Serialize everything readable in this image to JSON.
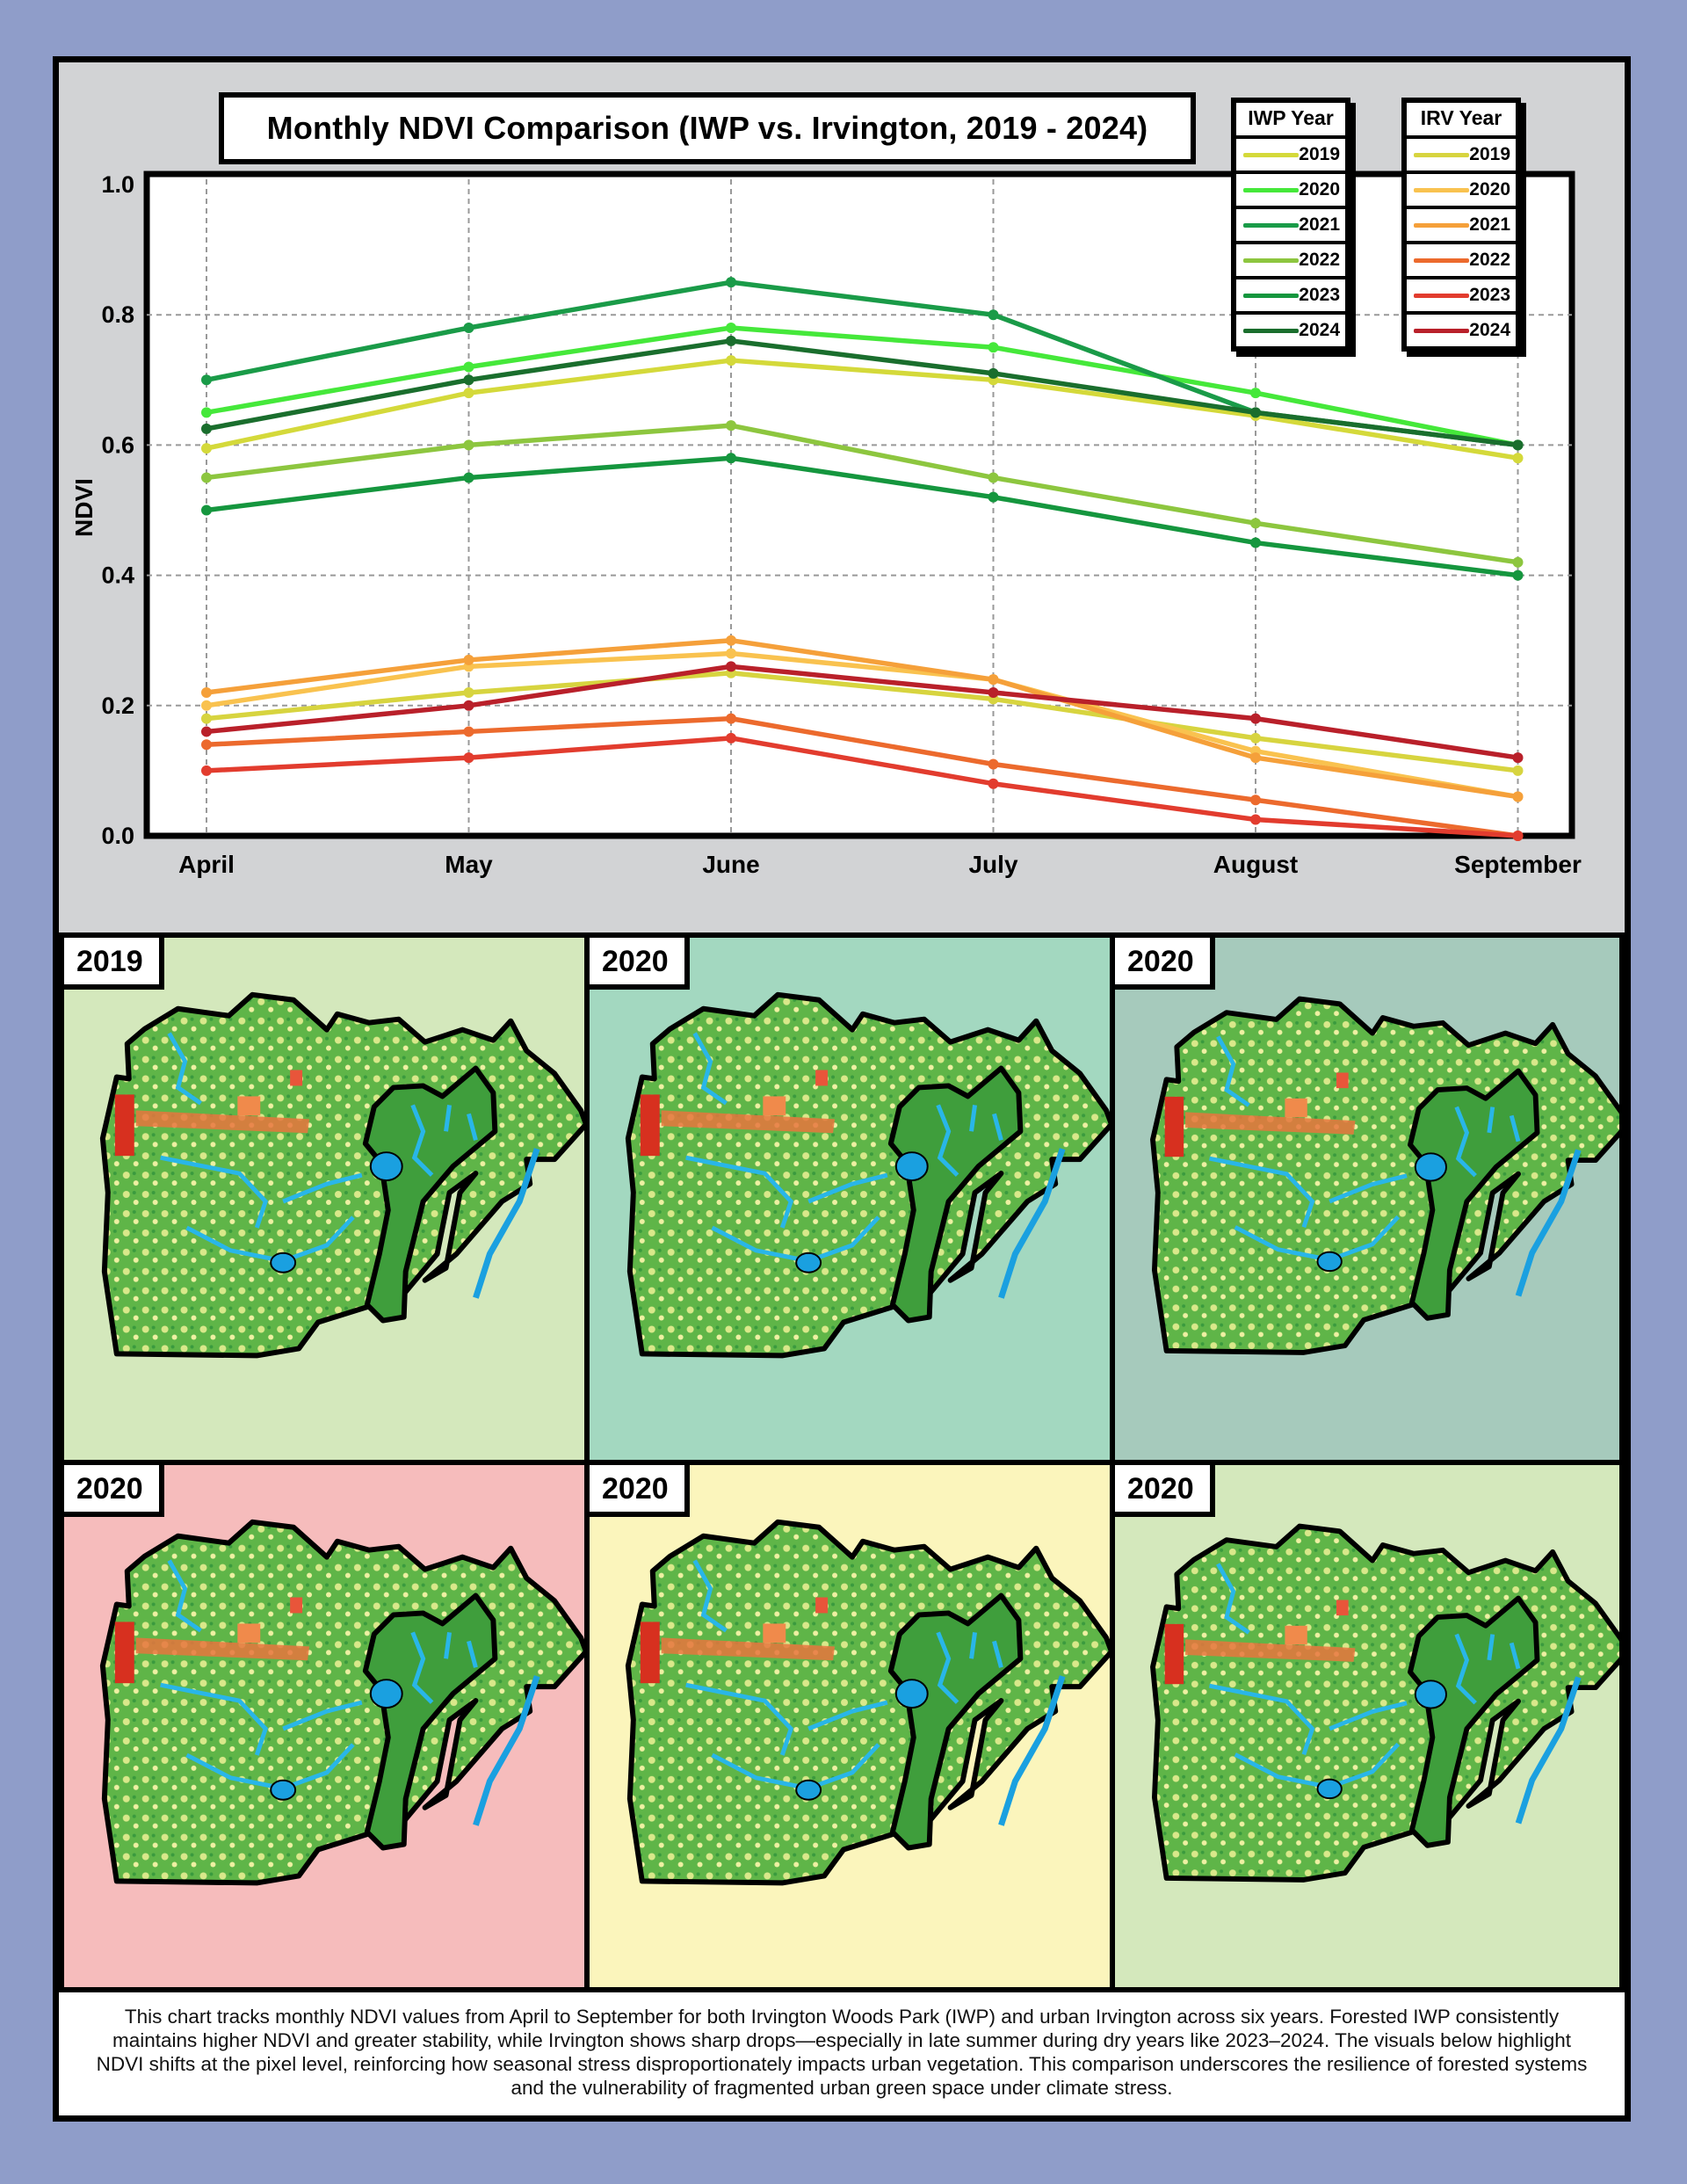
{
  "title": "Monthly NDVI Comparison (IWP vs. Irvington, 2019 - 2024)",
  "chart_data": {
    "type": "line",
    "ylabel": "NDVI",
    "xlabel": "",
    "categories": [
      "April",
      "May",
      "June",
      "July",
      "August",
      "September"
    ],
    "ylim": [
      0.0,
      1.0
    ],
    "yticks": [
      "0.0",
      "0.2",
      "0.4",
      "0.6",
      "0.8",
      "1.0"
    ],
    "grid": true,
    "legend_groups": [
      {
        "title": "IWP Year",
        "series": [
          {
            "name": "2019",
            "color": "#d4d93a",
            "values": [
              0.595,
              0.68,
              0.73,
              0.7,
              0.645,
              0.58
            ]
          },
          {
            "name": "2020",
            "color": "#45e83a",
            "values": [
              0.65,
              0.72,
              0.78,
              0.75,
              0.68,
              0.6
            ]
          },
          {
            "name": "2021",
            "color": "#1a9b48",
            "values": [
              0.7,
              0.78,
              0.85,
              0.8,
              0.65,
              0.6
            ]
          },
          {
            "name": "2022",
            "color": "#8dc63f",
            "values": [
              0.55,
              0.6,
              0.63,
              0.55,
              0.48,
              0.42
            ]
          },
          {
            "name": "2023",
            "color": "#15963e",
            "values": [
              0.5,
              0.55,
              0.58,
              0.52,
              0.45,
              0.4
            ]
          },
          {
            "name": "2024",
            "color": "#1a6e2d",
            "values": [
              0.625,
              0.7,
              0.76,
              0.71,
              0.65,
              0.6
            ]
          }
        ]
      },
      {
        "title": "IRV Year",
        "series": [
          {
            "name": "2019",
            "color": "#d7d43f",
            "values": [
              0.18,
              0.22,
              0.25,
              0.21,
              0.15,
              0.1
            ]
          },
          {
            "name": "2020",
            "color": "#f9c24f",
            "values": [
              0.2,
              0.26,
              0.28,
              0.24,
              0.13,
              0.06
            ]
          },
          {
            "name": "2021",
            "color": "#f5a03a",
            "values": [
              0.22,
              0.27,
              0.3,
              0.24,
              0.12,
              0.06
            ]
          },
          {
            "name": "2022",
            "color": "#ec6a2d",
            "values": [
              0.14,
              0.16,
              0.18,
              0.11,
              0.055,
              0.0
            ]
          },
          {
            "name": "2023",
            "color": "#e23c2e",
            "values": [
              0.1,
              0.12,
              0.15,
              0.08,
              0.025,
              0.0
            ]
          },
          {
            "name": "2024",
            "color": "#b9202a",
            "values": [
              0.16,
              0.2,
              0.26,
              0.22,
              0.18,
              0.12
            ]
          }
        ]
      }
    ]
  },
  "maps": [
    {
      "year": "2019",
      "bg": "#d4e8bc"
    },
    {
      "year": "2020",
      "bg": "#a3d8c0"
    },
    {
      "year": "2020",
      "bg": "#a6cabc"
    },
    {
      "year": "2020",
      "bg": "#f6bcbc"
    },
    {
      "year": "2020",
      "bg": "#fbf5bc"
    },
    {
      "year": "2020",
      "bg": "#d4e8bc"
    }
  ],
  "caption": "This chart tracks monthly NDVI values from April to September for both Irvington Woods Park (IWP) and urban Irvington across six years. Forested IWP consistently maintains higher NDVI and greater stability, while Irvington shows sharp drops—especially in late summer during dry years like 2023–2024. The visuals below highlight NDVI shifts at the pixel level, reinforcing how seasonal stress disproportionately impacts urban vegetation. This comparison underscores the resilience of forested systems and the vulnerability of fragmented urban green space under climate stress."
}
